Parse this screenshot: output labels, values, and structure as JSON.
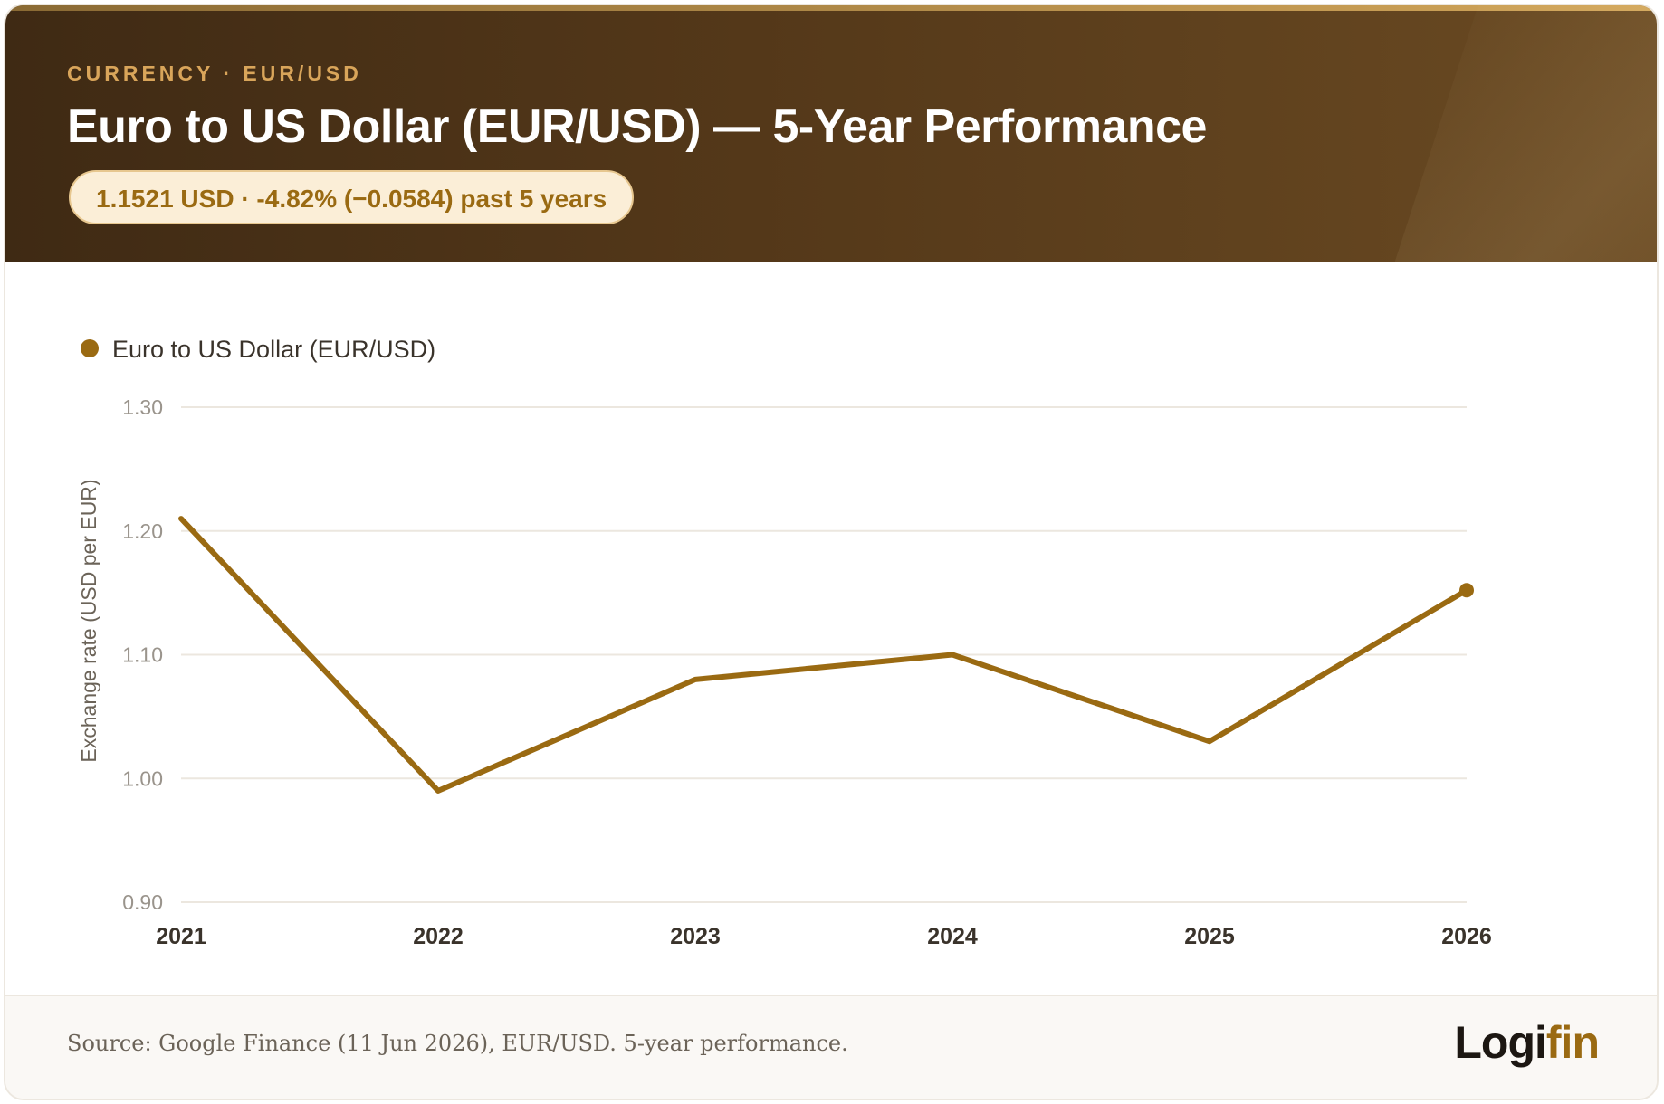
{
  "header": {
    "eyebrow": "CURRENCY · EUR/USD",
    "title": "Euro to US Dollar (EUR/USD) — 5-Year Performance",
    "badge": "1.1521 USD · -4.82% (−0.0584) past 5 years"
  },
  "chart_data": {
    "type": "line",
    "title": "",
    "xlabel": "",
    "ylabel": "Exchange rate (USD per EUR)",
    "x": [
      "2021",
      "2022",
      "2023",
      "2024",
      "2025",
      "2026"
    ],
    "series": [
      {
        "name": "Euro to US Dollar (EUR/USD)",
        "values": [
          1.21,
          0.99,
          1.08,
          1.1,
          1.03,
          1.1521
        ],
        "color": "#9a6a12"
      }
    ],
    "ylim": [
      0.9,
      1.3
    ],
    "yticks": [
      "1.30",
      "1.20",
      "1.10",
      "1.00",
      "0.90"
    ],
    "grid": true,
    "legend": "top-left",
    "end_marker": true
  },
  "footer": {
    "source": "Source: Google Finance (11 Jun 2026), EUR/USD. 5-year performance.",
    "logo_part1": "Logi",
    "logo_part2": "fin"
  },
  "colors": {
    "accent": "#9a6a12",
    "header_dark": "#3f2a14",
    "grid": "#ece7df"
  }
}
